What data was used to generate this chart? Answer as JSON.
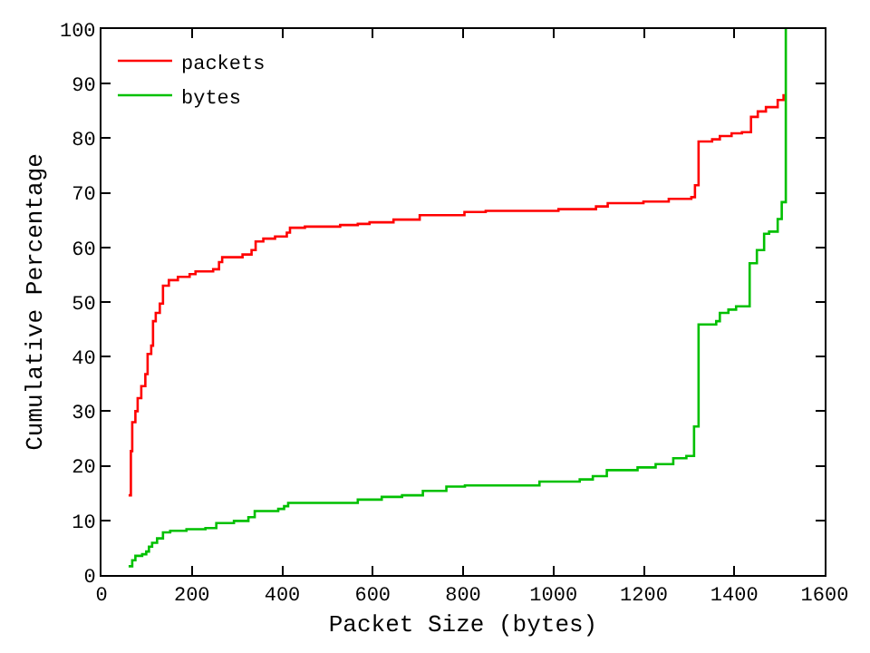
{
  "chart_data": {
    "type": "step",
    "xlabel": "Packet Size (bytes)",
    "ylabel": "Cumulative Percentage",
    "xlim": [
      0,
      1600
    ],
    "ylim": [
      0,
      100
    ],
    "xticks": [
      0,
      200,
      400,
      600,
      800,
      1000,
      1200,
      1400,
      1600
    ],
    "yticks": [
      0,
      10,
      20,
      30,
      40,
      50,
      60,
      70,
      80,
      90,
      100
    ],
    "grid": false,
    "legend": "top left",
    "marker": "none",
    "line_style": "solid",
    "series": [
      {
        "name": "packets",
        "color": "#ff0000",
        "x": [
          60,
          65,
          68,
          75,
          80,
          88,
          97,
          102,
          110,
          114,
          120,
          129,
          136,
          149,
          169,
          195,
          208,
          247,
          260,
          267,
          312,
          332,
          341,
          358,
          384,
          410,
          417,
          450,
          528,
          567,
          593,
          646,
          704,
          803,
          850,
          1011,
          1094,
          1120,
          1199,
          1255,
          1305,
          1313,
          1321,
          1351,
          1368,
          1394,
          1417,
          1437,
          1452,
          1470,
          1496,
          1509
        ],
        "values": [
          14.6,
          22.7,
          28,
          30,
          32.4,
          34.6,
          36.8,
          40.5,
          42,
          46.5,
          48,
          49.7,
          53,
          54,
          54.6,
          55.1,
          55.6,
          56,
          57.3,
          58.2,
          58.7,
          59.5,
          61.1,
          61.6,
          62,
          62.7,
          63.6,
          63.8,
          64.1,
          64.3,
          64.6,
          65.1,
          65.9,
          66.5,
          66.7,
          67.0,
          67.5,
          68.1,
          68.4,
          68.9,
          69.2,
          71.4,
          79.4,
          79.8,
          80.4,
          80.9,
          81.1,
          83.9,
          84.9,
          85.7,
          87,
          88.1
        ]
      },
      {
        "name": "bytes",
        "color": "#00c000",
        "x": [
          60,
          68,
          75,
          90,
          99,
          105,
          112,
          123,
          136,
          152,
          188,
          230,
          254,
          293,
          325,
          339,
          391,
          404,
          413,
          567,
          620,
          665,
          711,
          763,
          804,
          969,
          1058,
          1087,
          1118,
          1186,
          1226,
          1265,
          1294,
          1311,
          1321,
          1360,
          1368,
          1387,
          1404,
          1434,
          1450,
          1466,
          1477,
          1496,
          1505,
          1514
        ],
        "values": [
          1.6,
          2.7,
          3.5,
          3.8,
          4.3,
          5.2,
          5.9,
          6.7,
          7.8,
          8.1,
          8.4,
          8.6,
          9.5,
          9.9,
          10.6,
          11.7,
          12.1,
          12.6,
          13.2,
          13.8,
          14.3,
          14.6,
          15.4,
          16.2,
          16.4,
          17.1,
          17.5,
          18.1,
          19.2,
          19.7,
          20.3,
          21.4,
          21.8,
          27.2,
          45.9,
          46.5,
          48,
          48.6,
          49.2,
          57.1,
          59.5,
          62.5,
          62.9,
          65.2,
          68.3,
          100
        ]
      }
    ]
  }
}
